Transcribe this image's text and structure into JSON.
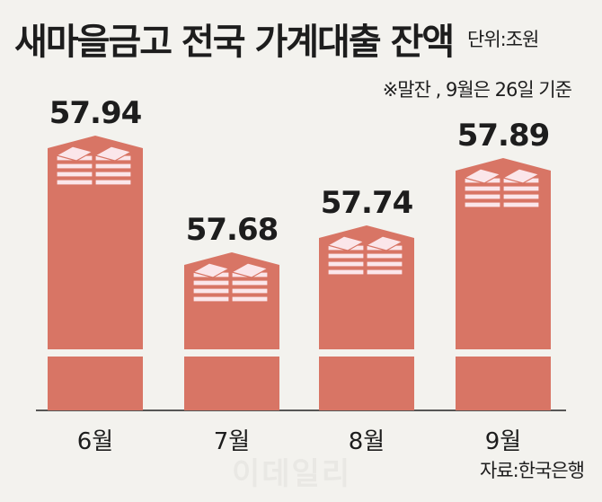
{
  "title": "새마을금고 전국 가계대출 잔액",
  "unit": "단위:조원",
  "note": "※말잔 , 9월은 26일 기준",
  "source": "자료:한국은행",
  "watermark": "이데일리",
  "colors": {
    "bar": "#d87565",
    "bar_dark": "#c8604f",
    "stack_fill": "#fbe6ea",
    "background": "#f3f2ee"
  },
  "icons": [
    "money-stack-icon"
  ],
  "chart_data": {
    "type": "bar",
    "categories": [
      "6월",
      "7월",
      "8월",
      "9월"
    ],
    "values": [
      57.94,
      57.68,
      57.74,
      57.89
    ],
    "value_labels": [
      "57.94",
      "57.68",
      "57.74",
      "57.89"
    ],
    "axis_break": true,
    "grid": false,
    "ylim": [
      57.3,
      58.0
    ]
  }
}
